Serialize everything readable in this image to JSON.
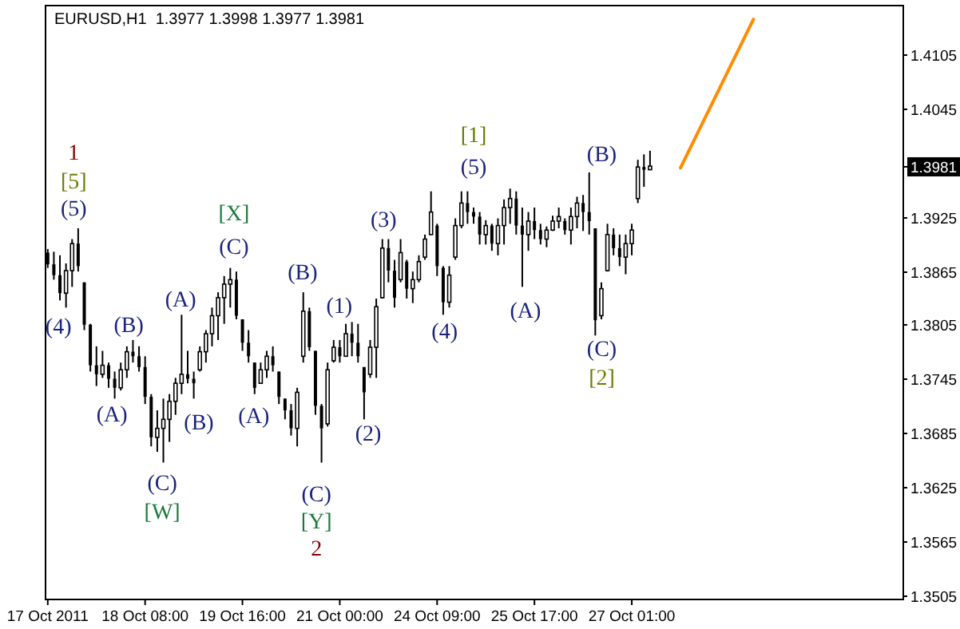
{
  "chart_data": {
    "type": "candlestick",
    "title": "EURUSD,H1  1.3977 1.3998 1.3977 1.3981",
    "color": "#000000",
    "categories": [
      "17 Oct 2011",
      null,
      null,
      null,
      null,
      null,
      null,
      null,
      null,
      null,
      null,
      null,
      null,
      null,
      null,
      null,
      "18 Oct 08:00",
      null,
      null,
      null,
      null,
      null,
      null,
      null,
      null,
      null,
      null,
      null,
      null,
      null,
      null,
      null,
      "19 Oct 16:00",
      null,
      null,
      null,
      null,
      null,
      null,
      null,
      null,
      null,
      null,
      null,
      null,
      null,
      null,
      null,
      "21 Oct 00:00",
      null,
      null,
      null,
      null,
      null,
      null,
      null,
      null,
      null,
      null,
      null,
      null,
      null,
      null,
      null,
      "24 Oct 09:00",
      null,
      null,
      null,
      null,
      null,
      null,
      null,
      null,
      null,
      null,
      null,
      null,
      null,
      null,
      null,
      "25 Oct 17:00",
      null,
      null,
      null,
      null,
      null,
      null,
      null,
      null,
      null,
      null,
      null,
      null,
      null,
      null,
      null,
      "27 Oct 01:00",
      null,
      null,
      null,
      null,
      null,
      null,
      null,
      null,
      null,
      null,
      null,
      null,
      null,
      null,
      null,
      null,
      null,
      null,
      null,
      null,
      null,
      null,
      null,
      null,
      null,
      null,
      null,
      null,
      null,
      null,
      null,
      null,
      null,
      null,
      null,
      null,
      null,
      null,
      null,
      null,
      null,
      null,
      null,
      null
    ],
    "ohlc": [
      [
        1.3885,
        1.3889,
        1.3868,
        1.3872
      ],
      [
        1.3872,
        1.3886,
        1.3855,
        1.386
      ],
      [
        1.386,
        1.3882,
        1.3832,
        1.384
      ],
      [
        1.384,
        1.3873,
        1.3824,
        1.3865
      ],
      [
        1.3865,
        1.39,
        1.3847,
        1.3895
      ],
      [
        1.3895,
        1.3912,
        1.3864,
        1.387
      ],
      [
        1.3852,
        1.3852,
        1.3799,
        1.3805
      ],
      [
        1.3805,
        1.3806,
        1.3753,
        1.376
      ],
      [
        1.376,
        1.3781,
        1.3737,
        1.375
      ],
      [
        1.375,
        1.3776,
        1.3746,
        1.376
      ],
      [
        1.376,
        1.3763,
        1.3735,
        1.3745
      ],
      [
        1.3745,
        1.3753,
        1.3723,
        1.3735
      ],
      [
        1.3735,
        1.3763,
        1.3732,
        1.3755
      ],
      [
        1.3755,
        1.3781,
        1.3746,
        1.3775
      ],
      [
        1.3775,
        1.3788,
        1.3763,
        1.377
      ],
      [
        1.377,
        1.3781,
        1.3753,
        1.3758
      ],
      [
        1.3758,
        1.377,
        1.3717,
        1.3725
      ],
      [
        1.3725,
        1.3728,
        1.367,
        1.368
      ],
      [
        1.368,
        1.371,
        1.3664,
        1.369
      ],
      [
        1.369,
        1.3723,
        1.3652,
        1.37
      ],
      [
        1.37,
        1.3728,
        1.3675,
        1.372
      ],
      [
        1.372,
        1.3746,
        1.3705,
        1.374
      ],
      [
        1.374,
        1.3816,
        1.3728,
        1.375
      ],
      [
        1.375,
        1.3776,
        1.374,
        1.3745
      ],
      [
        1.3745,
        1.3753,
        1.3723,
        1.374
      ],
      [
        1.3755,
        1.3781,
        1.3753,
        1.3775
      ],
      [
        1.3775,
        1.3799,
        1.3763,
        1.3795
      ],
      [
        1.3795,
        1.3824,
        1.3781,
        1.3815
      ],
      [
        1.3815,
        1.3841,
        1.3788,
        1.3835
      ],
      [
        1.3835,
        1.3859,
        1.3806,
        1.385
      ],
      [
        1.385,
        1.3868,
        1.3824,
        1.3855
      ],
      [
        1.3855,
        1.3864,
        1.3811,
        1.3815
      ],
      [
        1.3811,
        1.3811,
        1.3776,
        1.3785
      ],
      [
        1.3785,
        1.3799,
        1.3763,
        1.377
      ],
      [
        1.3763,
        1.3763,
        1.3728,
        1.3735
      ],
      [
        1.374,
        1.3763,
        1.374,
        1.3755
      ],
      [
        1.3755,
        1.3776,
        1.3746,
        1.377
      ],
      [
        1.377,
        1.3781,
        1.3753,
        1.376
      ],
      [
        1.3753,
        1.3753,
        1.3717,
        1.3725
      ],
      [
        1.3723,
        1.3723,
        1.37,
        1.371
      ],
      [
        1.371,
        1.3717,
        1.3682,
        1.369
      ],
      [
        1.369,
        1.3735,
        1.367,
        1.373
      ],
      [
        1.377,
        1.3841,
        1.3763,
        1.382
      ],
      [
        1.382,
        1.3824,
        1.3776,
        1.378
      ],
      [
        1.3776,
        1.3776,
        1.3705,
        1.3715
      ],
      [
        1.3715,
        1.3717,
        1.3652,
        1.369
      ],
      [
        1.3695,
        1.3763,
        1.3692,
        1.3755
      ],
      [
        1.3765,
        1.3788,
        1.3763,
        1.378
      ],
      [
        1.378,
        1.3788,
        1.3763,
        1.377
      ],
      [
        1.377,
        1.3806,
        1.377,
        1.3795
      ],
      [
        1.3795,
        1.3808,
        1.377,
        1.3785
      ],
      [
        1.3785,
        1.3806,
        1.3763,
        1.377
      ],
      [
        1.3758,
        1.3758,
        1.37,
        1.373
      ],
      [
        1.375,
        1.3788,
        1.3746,
        1.378
      ],
      [
        1.378,
        1.3834,
        1.3746,
        1.3825
      ],
      [
        1.3835,
        1.39,
        1.3834,
        1.389
      ],
      [
        1.389,
        1.39,
        1.3852,
        1.3865
      ],
      [
        1.3865,
        1.3877,
        1.3824,
        1.3835
      ],
      [
        1.3855,
        1.39,
        1.3852,
        1.3885
      ],
      [
        1.3875,
        1.3877,
        1.3834,
        1.3845
      ],
      [
        1.3845,
        1.3864,
        1.3829,
        1.3855
      ],
      [
        1.3855,
        1.3882,
        1.3852,
        1.3875
      ],
      [
        1.388,
        1.3905,
        1.3877,
        1.39
      ],
      [
        1.3905,
        1.3953,
        1.3905,
        1.393
      ],
      [
        1.3915,
        1.3917,
        1.3859,
        1.387
      ],
      [
        1.3868,
        1.387,
        1.3816,
        1.383
      ],
      [
        1.383,
        1.387,
        1.3824,
        1.386
      ],
      [
        1.388,
        1.3923,
        1.3877,
        1.3915
      ],
      [
        1.3915,
        1.3953,
        1.3912,
        1.394
      ],
      [
        1.394,
        1.3953,
        1.3917,
        1.393
      ],
      [
        1.393,
        1.3935,
        1.3917,
        1.3925
      ],
      [
        1.3925,
        1.393,
        1.3894,
        1.3905
      ],
      [
        1.3905,
        1.3921,
        1.3894,
        1.3915
      ],
      [
        1.3915,
        1.3917,
        1.3887,
        1.3895
      ],
      [
        1.3895,
        1.3923,
        1.3882,
        1.3915
      ],
      [
        1.3915,
        1.3944,
        1.3894,
        1.3935
      ],
      [
        1.3935,
        1.3956,
        1.3917,
        1.3945
      ],
      [
        1.3945,
        1.3953,
        1.3905,
        1.3915
      ],
      [
        1.3915,
        1.3935,
        1.3847,
        1.3905
      ],
      [
        1.3905,
        1.393,
        1.3887,
        1.392
      ],
      [
        1.392,
        1.3935,
        1.39,
        1.391
      ],
      [
        1.391,
        1.3917,
        1.3894,
        1.39
      ],
      [
        1.39,
        1.3914,
        1.3891,
        1.391
      ],
      [
        1.391,
        1.3926,
        1.3909,
        1.392
      ],
      [
        1.392,
        1.3935,
        1.3912,
        1.3925
      ],
      [
        1.392,
        1.3923,
        1.3905,
        1.391
      ],
      [
        1.391,
        1.3935,
        1.3894,
        1.3925
      ],
      [
        1.3925,
        1.3947,
        1.3912,
        1.394
      ],
      [
        1.394,
        1.3949,
        1.3909,
        1.393
      ],
      [
        1.393,
        1.3974,
        1.3905,
        1.392
      ],
      [
        1.3912,
        1.3912,
        1.3793,
        1.381
      ],
      [
        1.3815,
        1.3852,
        1.3811,
        1.3845
      ],
      [
        1.3865,
        1.3917,
        1.3864,
        1.3905
      ],
      [
        1.3905,
        1.3912,
        1.3882,
        1.389
      ],
      [
        1.389,
        1.3905,
        1.387,
        1.388
      ],
      [
        1.388,
        1.3905,
        1.3861,
        1.3895
      ],
      [
        1.3895,
        1.3917,
        1.3882,
        1.391
      ],
      [
        1.3945,
        1.3988,
        1.394,
        1.398
      ],
      [
        1.398,
        1.3994,
        1.3958,
        1.3977
      ],
      [
        1.3977,
        1.3998,
        1.3977,
        1.3981
      ],
      null,
      null,
      null,
      null,
      null,
      null,
      null,
      null,
      null,
      null,
      null,
      null,
      null,
      null,
      null,
      null,
      null,
      null,
      null,
      null,
      null,
      null,
      null,
      null,
      null,
      null,
      null,
      null,
      null,
      null,
      null,
      null,
      null,
      null,
      null,
      null,
      null,
      null,
      null,
      null,
      null
    ],
    "series": [
      {
        "type": "line",
        "color": "#ff8c00",
        "values": [
          null,
          null,
          null,
          null,
          null,
          null,
          null,
          null,
          null,
          null,
          null,
          null,
          null,
          null,
          null,
          null,
          null,
          null,
          null,
          null,
          null,
          null,
          null,
          null,
          null,
          null,
          null,
          null,
          null,
          null,
          null,
          null,
          null,
          null,
          null,
          null,
          null,
          null,
          null,
          null,
          null,
          null,
          null,
          null,
          null,
          null,
          null,
          null,
          null,
          null,
          null,
          null,
          null,
          null,
          null,
          null,
          null,
          null,
          null,
          null,
          null,
          null,
          null,
          null,
          null,
          null,
          null,
          null,
          null,
          null,
          null,
          null,
          null,
          null,
          null,
          null,
          null,
          null,
          null,
          null,
          null,
          null,
          null,
          null,
          null,
          null,
          null,
          null,
          null,
          null,
          null,
          null,
          null,
          null,
          null,
          null,
          null,
          null,
          null,
          null,
          null,
          null,
          null,
          null,
          1.3979,
          null,
          null,
          null,
          null,
          null,
          null,
          null,
          null,
          null,
          null,
          null,
          1.4144,
          null,
          null,
          null,
          null,
          null,
          null,
          null,
          null,
          null,
          null,
          null,
          null,
          null,
          null,
          null,
          null,
          null,
          null,
          null,
          null,
          null,
          null,
          null,
          null
        ]
      }
    ],
    "ylim": [
      1.3501,
      1.416
    ],
    "yticks": [
      1.4105,
      1.4045,
      1.3981,
      1.3925,
      1.3865,
      1.3805,
      1.3745,
      1.3685,
      1.3625,
      1.3565,
      1.3505
    ],
    "annotations": [
      "1",
      "[5]",
      "(5)",
      "(4)",
      "(B)",
      "(A)",
      "(C)",
      "[W]",
      "(A)",
      "(B)",
      "[X]",
      "(C)",
      "(A)",
      "(B)",
      "(1)",
      "(C)",
      "[Y]",
      "2",
      "(2)",
      "(3)",
      "(4)",
      "[1]",
      "(5)",
      "(A)",
      "(B)",
      "(C)",
      "[2]"
    ]
  }
}
